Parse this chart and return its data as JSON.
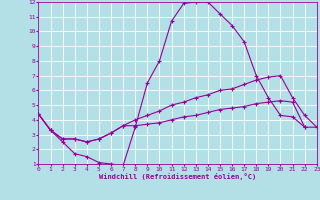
{
  "background_color": "#b2e0e6",
  "grid_color": "#d0d0d0",
  "line_color": "#990099",
  "xlabel": "Windchill (Refroidissement éolien,°C)",
  "xlim": [
    0,
    23
  ],
  "ylim": [
    1,
    12
  ],
  "xticks": [
    0,
    1,
    2,
    3,
    4,
    5,
    6,
    7,
    8,
    9,
    10,
    11,
    12,
    13,
    14,
    15,
    16,
    17,
    18,
    19,
    20,
    21,
    22,
    23
  ],
  "yticks": [
    1,
    2,
    3,
    4,
    5,
    6,
    7,
    8,
    9,
    10,
    11,
    12
  ],
  "line1_x": [
    0,
    1,
    2,
    3,
    4,
    5,
    6,
    7,
    8,
    9,
    10,
    11,
    12,
    13,
    14,
    15,
    16,
    17,
    18,
    19,
    20,
    21,
    22
  ],
  "line1_y": [
    4.4,
    3.3,
    2.5,
    1.7,
    1.5,
    1.1,
    1.0,
    0.9,
    3.5,
    6.5,
    8.0,
    10.7,
    11.9,
    12.0,
    12.0,
    11.2,
    10.4,
    9.3,
    7.0,
    5.5,
    4.3,
    4.2,
    3.5
  ],
  "line2_x": [
    0,
    1,
    2,
    3,
    4,
    5,
    6,
    7,
    8,
    9,
    10,
    11,
    12,
    13,
    14,
    15,
    16,
    17,
    18,
    19,
    20,
    21,
    22,
    23
  ],
  "line2_y": [
    4.4,
    3.3,
    2.7,
    2.7,
    2.5,
    2.7,
    3.1,
    3.6,
    4.0,
    4.3,
    4.6,
    5.0,
    5.2,
    5.5,
    5.7,
    6.0,
    6.1,
    6.4,
    6.7,
    6.9,
    7.0,
    5.5,
    4.3,
    3.5
  ],
  "line3_x": [
    0,
    1,
    2,
    3,
    4,
    5,
    6,
    7,
    8,
    9,
    10,
    11,
    12,
    13,
    14,
    15,
    16,
    17,
    18,
    19,
    20,
    21,
    22,
    23
  ],
  "line3_y": [
    4.4,
    3.3,
    2.7,
    2.7,
    2.5,
    2.7,
    3.1,
    3.6,
    3.6,
    3.7,
    3.8,
    4.0,
    4.2,
    4.3,
    4.5,
    4.7,
    4.8,
    4.9,
    5.1,
    5.2,
    5.3,
    5.2,
    3.5,
    3.5
  ]
}
